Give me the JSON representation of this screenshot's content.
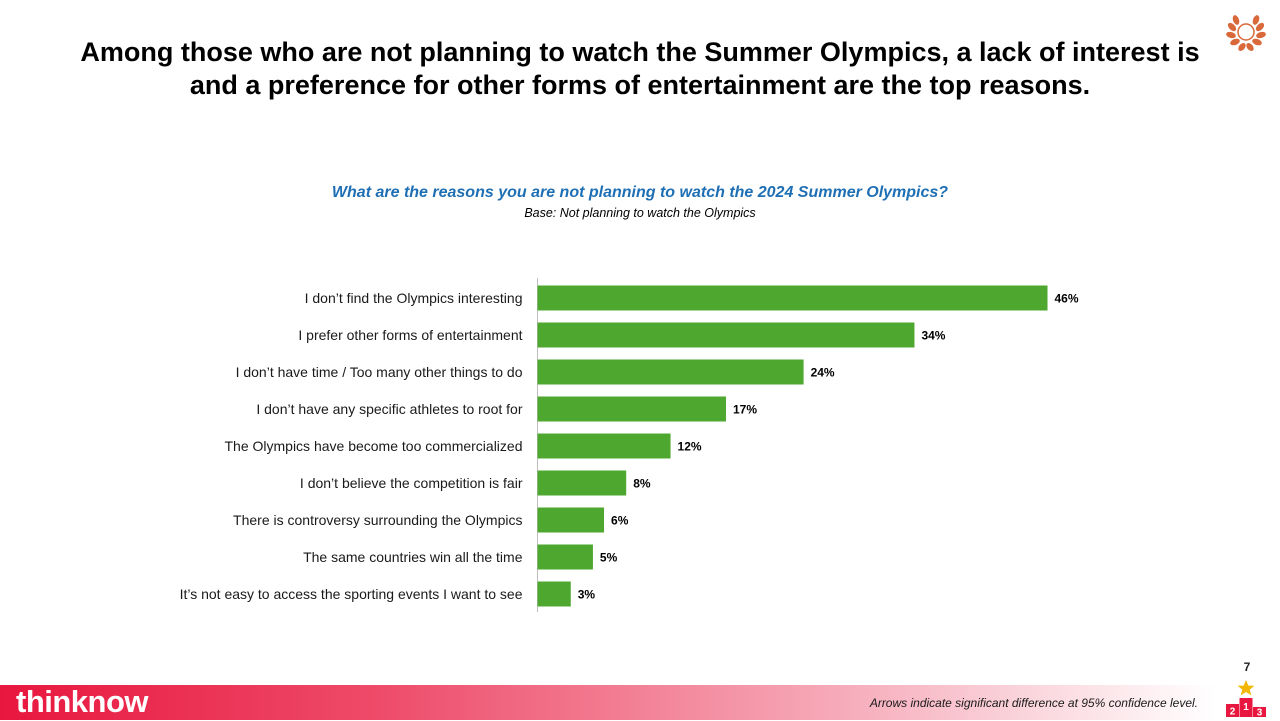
{
  "header": {
    "title": "Among those who are not planning to watch the Summer Olympics, a lack of interest is and a preference for other forms of entertainment are the top reasons."
  },
  "chart_data": {
    "type": "bar",
    "orientation": "horizontal",
    "title": "What are the reasons you are not planning to watch the 2024 Summer Olympics?",
    "subtitle": "Base: Not planning to watch the Olympics",
    "categories": [
      "I don’t find the Olympics interesting",
      "I prefer other forms of entertainment",
      "I don’t have time / Too many other things to do",
      "I don’t have any specific athletes to root for",
      "The Olympics have become too commercialized",
      "I don’t believe the competition is fair",
      "There is controversy surrounding the Olympics",
      "The same countries win all the time",
      "It’s not easy to access the sporting events I want to see"
    ],
    "values": [
      46,
      34,
      24,
      17,
      12,
      8,
      6,
      5,
      3
    ],
    "value_labels": [
      "46%",
      "34%",
      "24%",
      "17%",
      "12%",
      "8%",
      "6%",
      "5%",
      "3%"
    ],
    "unit": "%",
    "xlim": [
      0,
      46
    ],
    "bar_color": "#4ea72e",
    "grid": false,
    "legend": "none"
  },
  "footer": {
    "brand": "thinknow",
    "note": "Arrows indicate significant difference at 95% confidence level.",
    "page_number": "7",
    "podium_labels": [
      "2",
      "1",
      "3"
    ]
  },
  "colors": {
    "brand_red": "#e8173f",
    "question_blue": "#1f6fb5",
    "bar_green": "#4ea72e",
    "laurel_orange": "#d9683a",
    "star_gold": "#f2b705"
  },
  "icons": {
    "logo": "laurel-wreath-icon",
    "podium": "podium-icon"
  }
}
